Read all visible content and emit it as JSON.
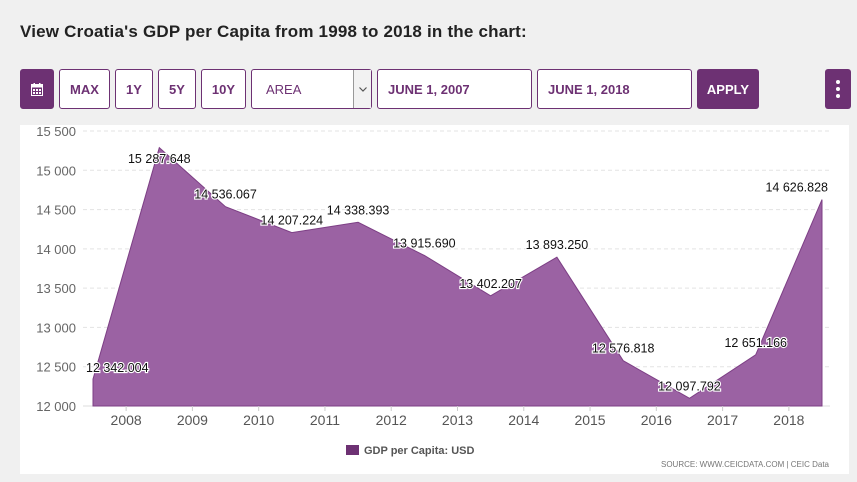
{
  "heading": "View Croatia's GDP per Capita from 1998 to 2018 in the chart:",
  "toolbar": {
    "calendar_icon": "calendar-icon",
    "ranges": [
      "MAX",
      "1Y",
      "5Y",
      "10Y"
    ],
    "chart_type": "AREA",
    "start_date": "JUNE 1, 2007",
    "end_date": "JUNE 1, 2018",
    "apply_label": "APPLY",
    "menu_icon": "kebab-menu-icon"
  },
  "colors": {
    "accent": "#6d3173",
    "area_fill": "#9b62a3",
    "area_stroke": "#7d3f85"
  },
  "source": "SOURCE: WWW.CEICDATA.COM | CEIC Data",
  "chart_data": {
    "type": "area",
    "x": [
      "2007",
      "2008",
      "2009",
      "2010",
      "2011",
      "2012",
      "2013",
      "2014",
      "2015",
      "2016",
      "2017",
      "2018"
    ],
    "series": [
      {
        "name": "GDP per Capita: USD",
        "values": [
          12342.004,
          15287.648,
          14536.067,
          14207.224,
          14338.393,
          13915.69,
          13402.207,
          13893.25,
          12576.818,
          12097.792,
          12651.166,
          14626.828
        ],
        "labels": [
          "12 342.004",
          "15 287.648",
          "14 536.067",
          "14 207.224",
          "14 338.393",
          "13 915.690",
          "13 402.207",
          "13 893.250",
          "12 576.818",
          "12 097.792",
          "12 651.166",
          "14 626.828"
        ]
      }
    ],
    "xticks": [
      "2008",
      "2009",
      "2010",
      "2011",
      "2012",
      "2013",
      "2014",
      "2015",
      "2016",
      "2017",
      "2018"
    ],
    "yticks": [
      "12 000",
      "12 500",
      "13 000",
      "13 500",
      "14 000",
      "14 500",
      "15 000",
      "15 500"
    ],
    "ylim": [
      12000,
      15500
    ],
    "grid": "horizontal dashed",
    "legend": "bottom-center"
  }
}
